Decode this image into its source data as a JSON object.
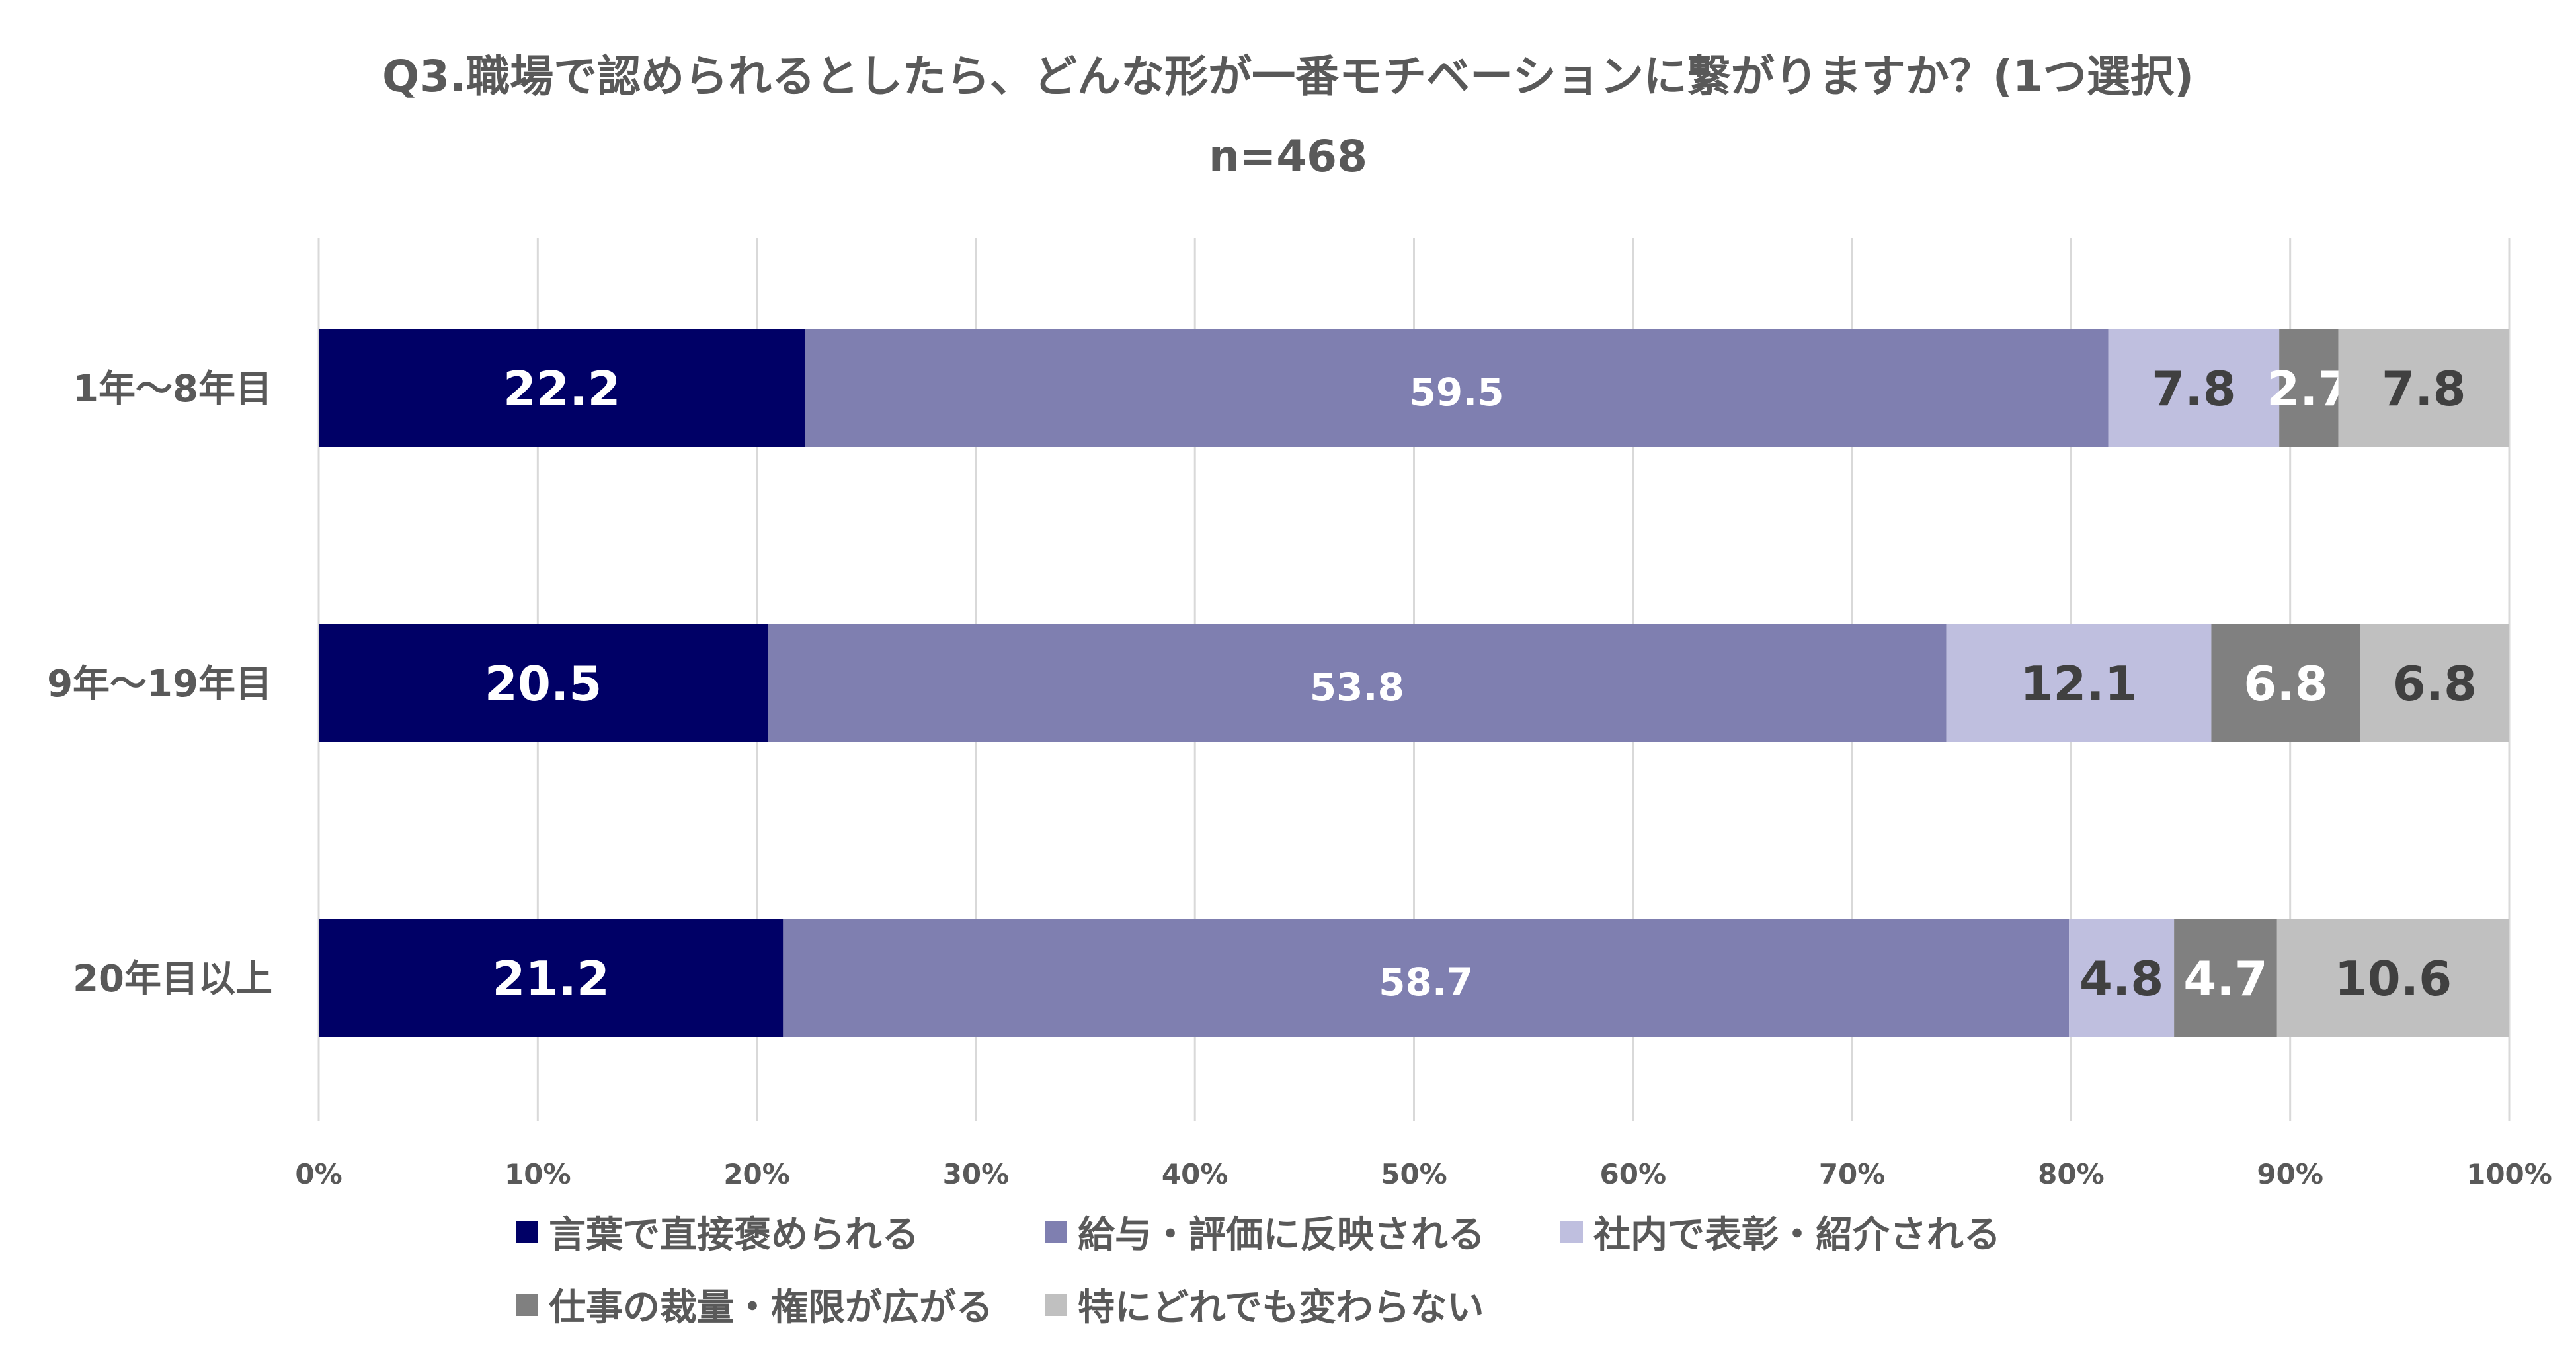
{
  "title": "Q3.職場で認められるとしたら、どんな形が一番モチベーションに繋がりますか？(1つ選択)",
  "subtitle": "n=468",
  "chart_data": {
    "type": "bar",
    "orientation": "horizontal",
    "stacked": true,
    "percent_stacked": true,
    "categories": [
      "1年〜8年目",
      "9年〜19年目",
      "20年目以上"
    ],
    "series": [
      {
        "name": "言葉で直接褒められる",
        "color": "#000066",
        "label_color": "#ffffff",
        "values": [
          22.2,
          20.5,
          21.2
        ]
      },
      {
        "name": "給与・評価に反映される",
        "color": "#7f7fb0",
        "label_color": "#ffffff",
        "values": [
          59.5,
          53.8,
          58.7
        ]
      },
      {
        "name": "社内で表彰・紹介される",
        "color": "#bfbfdf",
        "label_color": "#404040",
        "values": [
          7.8,
          12.1,
          4.8
        ]
      },
      {
        "name": "仕事の裁量・権限が広がる",
        "color": "#808080",
        "label_color": "#ffffff",
        "values": [
          2.7,
          6.8,
          4.7
        ]
      },
      {
        "name": "特にどれでも変わらない",
        "color": "#c0c0c0",
        "label_color": "#404040",
        "values": [
          7.8,
          6.8,
          10.6
        ]
      }
    ],
    "xlim": [
      0,
      100
    ],
    "x_ticks": [
      "0%",
      "10%",
      "20%",
      "30%",
      "40%",
      "50%",
      "60%",
      "70%",
      "80%",
      "90%",
      "100%"
    ],
    "grid": true,
    "legend_position": "bottom"
  }
}
